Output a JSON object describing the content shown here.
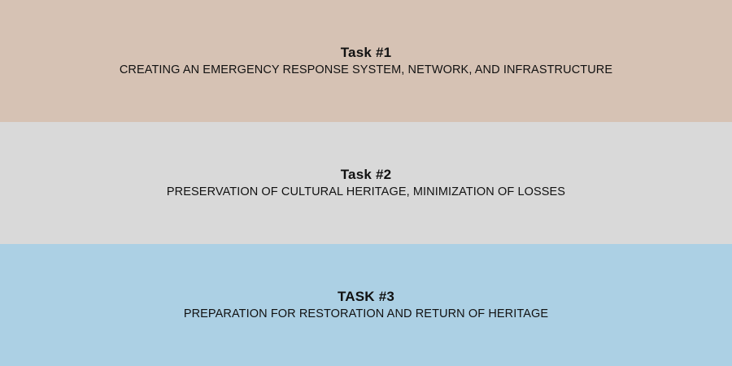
{
  "tasks": [
    {
      "title": "Task #1",
      "description": "CREATING AN EMERGENCY RESPONSE SYSTEM, NETWORK, AND INFRASTRUCTURE",
      "color": "#d6c2b4"
    },
    {
      "title": "Task #2",
      "description": "PRESERVATION OF CULTURAL HERITAGE, MINIMIZATION OF LOSSES",
      "color": "#d9d9d9"
    },
    {
      "title": "TASK #3",
      "description": "PREPARATION FOR RESTORATION AND RETURN OF HERITAGE",
      "color": "#acd0e4"
    }
  ]
}
